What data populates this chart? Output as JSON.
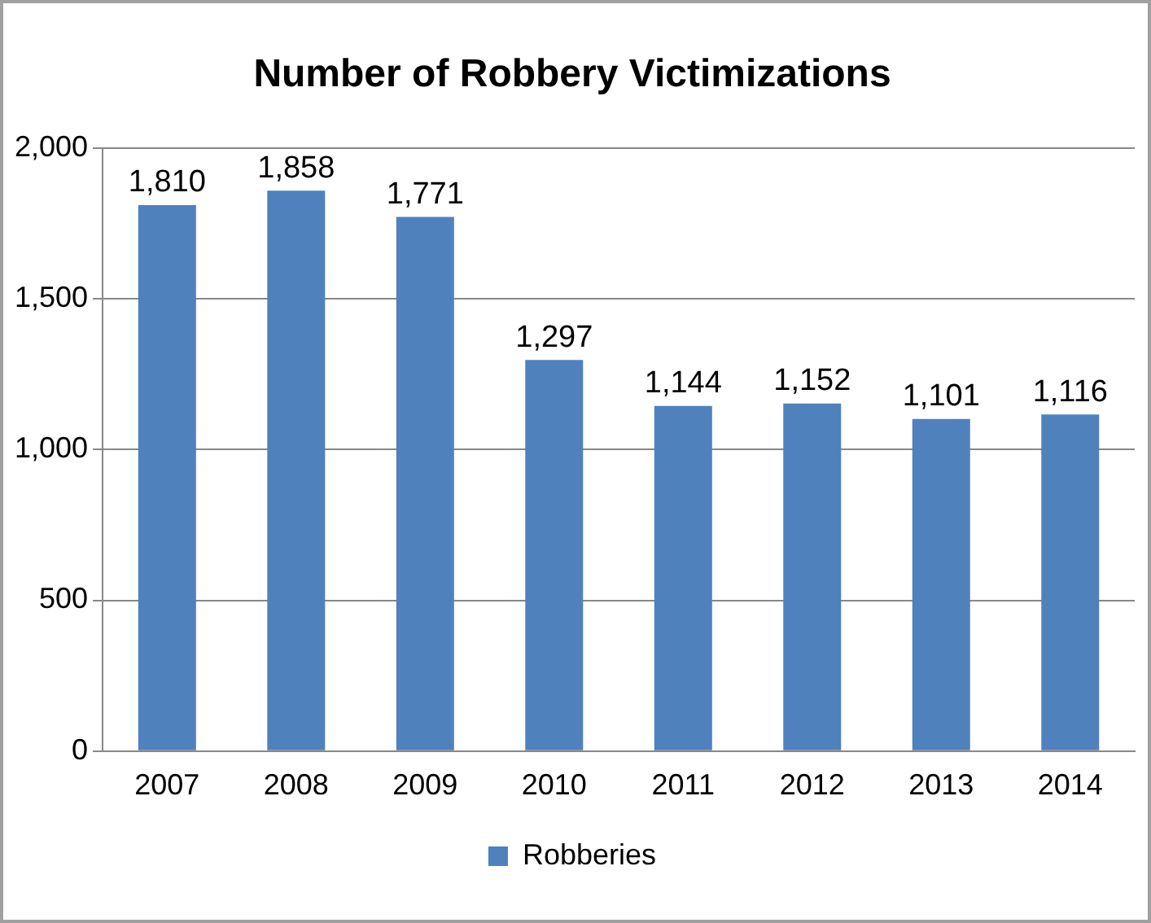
{
  "chart_data": {
    "type": "bar",
    "title": "Number of Robbery Victimizations",
    "categories": [
      "2007",
      "2008",
      "2009",
      "2010",
      "2011",
      "2012",
      "2013",
      "2014"
    ],
    "series": [
      {
        "name": "Robberies",
        "color": "#4f81bd",
        "values": [
          1810,
          1858,
          1771,
          1297,
          1144,
          1152,
          1101,
          1116
        ],
        "value_labels": [
          "1,810",
          "1,858",
          "1,771",
          "1,297",
          "1,144",
          "1,152",
          "1,101",
          "1,116"
        ]
      }
    ],
    "ylim": [
      0,
      2000
    ],
    "yticks": [
      {
        "value": 0,
        "label": "0"
      },
      {
        "value": 500,
        "label": "500"
      },
      {
        "value": 1000,
        "label": "1,000"
      },
      {
        "value": 1500,
        "label": "1,500"
      },
      {
        "value": 2000,
        "label": "2,000"
      }
    ],
    "grid": "y",
    "legend": "bottom"
  }
}
